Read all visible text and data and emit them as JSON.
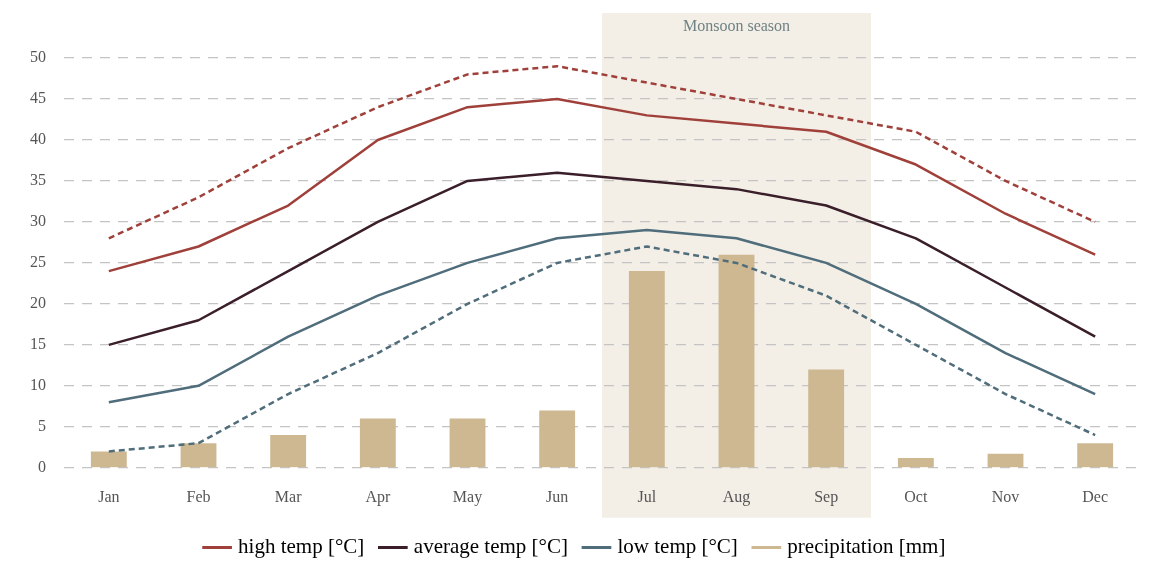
{
  "chart_data": {
    "type": "line",
    "categories": [
      "Jan",
      "Feb",
      "Mar",
      "Apr",
      "May",
      "Jun",
      "Jul",
      "Aug",
      "Sep",
      "Oct",
      "Nov",
      "Dec"
    ],
    "series": [
      {
        "color": "#a0403a",
        "line_style": "dashed",
        "values": [
          28,
          33,
          39,
          44,
          48,
          49,
          47,
          45,
          43,
          41,
          35,
          30
        ]
      },
      {
        "name": "high temp [°C]",
        "color": "#a0403a",
        "line_style": "solid",
        "values": [
          24,
          27,
          32,
          40,
          44,
          45,
          43,
          42,
          41,
          37,
          31,
          26
        ]
      },
      {
        "name": "average temp [°C]",
        "color": "#3a1f2a",
        "line_style": "solid",
        "values": [
          15,
          18,
          24,
          30,
          35,
          36,
          35,
          34,
          32,
          28,
          22,
          16
        ]
      },
      {
        "name": "low temp [°C]",
        "color": "#4f6d7a",
        "line_style": "solid",
        "values": [
          8,
          10,
          16,
          21,
          25,
          28,
          29,
          28,
          25,
          20,
          14,
          9
        ]
      },
      {
        "color": "#4f6d7a",
        "line_style": "dashed",
        "values": [
          2,
          3,
          9,
          14,
          20,
          25,
          27,
          25,
          21,
          15,
          9,
          4
        ]
      },
      {
        "name": "precipitation [mm]",
        "type": "bar",
        "color": "#cdb891",
        "values": [
          2,
          3,
          4,
          6,
          6,
          7,
          24,
          26,
          12,
          1.2,
          1.7,
          3
        ]
      }
    ],
    "ylim": [
      0,
      50
    ],
    "yticks": [
      0,
      5,
      10,
      15,
      20,
      25,
      30,
      35,
      40,
      45,
      50
    ],
    "grid": "y",
    "legend": "bottom",
    "marker": "none",
    "bands": [
      {
        "axis": "x",
        "from": "Jul",
        "to": "Sep",
        "label": "Monsoon season",
        "color": "#f3eee6"
      }
    ]
  }
}
